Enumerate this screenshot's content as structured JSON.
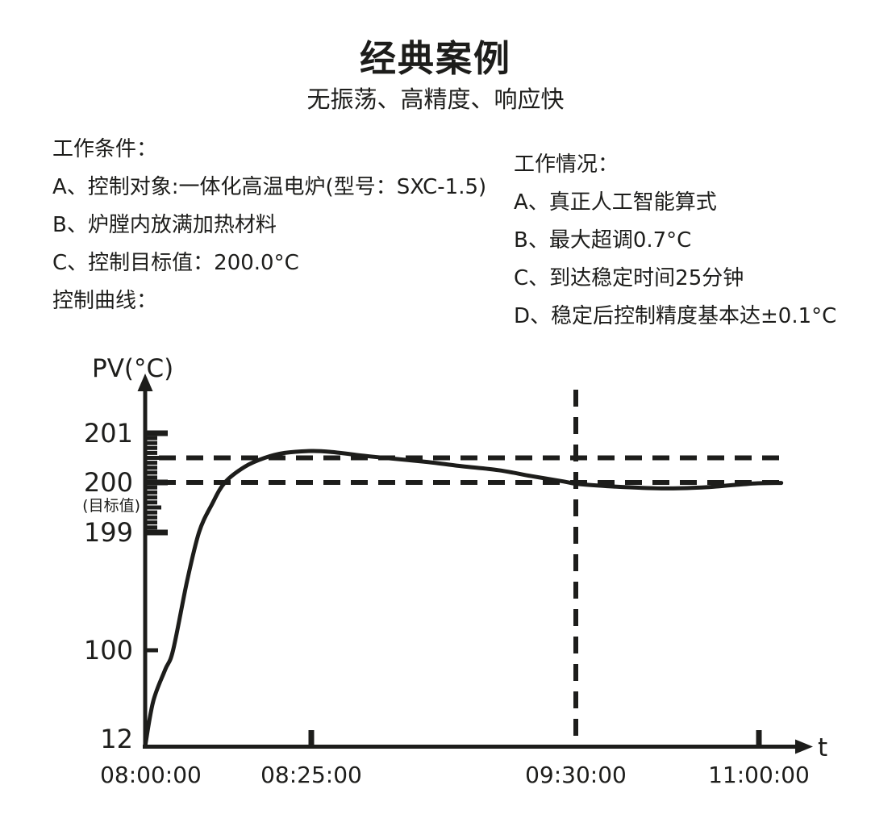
{
  "page": {
    "title": "经典案例",
    "subtitle": "无振荡、高精度、响应快"
  },
  "conditions": {
    "heading": "工作条件：",
    "items": [
      "A、控制对象:一体化高温电炉(型号：SXC-1.5)",
      "B、炉膛内放满加热材料",
      "C、控制目标值：200.0°C"
    ],
    "curve_label": "控制曲线："
  },
  "results": {
    "heading": "工作情况：",
    "items": [
      "A、真正人工智能算式",
      "B、最大超调0.7°C",
      "C、到达稳定时间25分钟",
      "D、稳定后控制精度基本达±0.1°C"
    ]
  },
  "chart_data": {
    "type": "line",
    "title": "控制曲线",
    "ylabel": "PV(°C)",
    "xlabel": "t",
    "x_axis": "time from 08:00:00, hh:mm:ss",
    "target_value": 200.0,
    "y_ticks": [
      {
        "value": 201,
        "label": "201"
      },
      {
        "value": 200,
        "label": "200",
        "sublabel": "(目标值)"
      },
      {
        "value": 199,
        "label": "199"
      },
      {
        "value": 100,
        "label": "100"
      },
      {
        "value": 12,
        "label": "12",
        "dy": -9
      }
    ],
    "y_ruler": {
      "from": 199,
      "to": 201,
      "minor_step": 0.1
    },
    "x_ticks": [
      {
        "label": "08:00:00",
        "minutes": 0,
        "tick": false,
        "dx": 7
      },
      {
        "label": "08:25:00",
        "minutes": 25,
        "tick": true
      },
      {
        "label": "09:30:00",
        "minutes": 90,
        "tick": false,
        "dashed_vertical": true
      },
      {
        "label": "11:00:00",
        "minutes": 180,
        "tick": true
      }
    ],
    "reference_lines_horizontal": [
      200.5,
      200.0
    ],
    "reference_line_vertical_minutes": 90,
    "series": [
      {
        "name": "PV",
        "points": [
          [
            0,
            12
          ],
          [
            1.2,
            53
          ],
          [
            3,
            82
          ],
          [
            4.2,
            100
          ],
          [
            6.3,
            158
          ],
          [
            8.1,
            199
          ],
          [
            10,
            199.55
          ],
          [
            12,
            200
          ],
          [
            15,
            200.32
          ],
          [
            18,
            200.5
          ],
          [
            21,
            200.6
          ],
          [
            25,
            200.64
          ],
          [
            30,
            200.62
          ],
          [
            36,
            200.56
          ],
          [
            43,
            200.5
          ],
          [
            53,
            200.42
          ],
          [
            62,
            200.33
          ],
          [
            71,
            200.25
          ],
          [
            79,
            200.13
          ],
          [
            87,
            200.02
          ],
          [
            91,
            199.97
          ],
          [
            108,
            199.92
          ],
          [
            132,
            199.88
          ],
          [
            152,
            199.9
          ],
          [
            168,
            199.95
          ],
          [
            178,
            199.98
          ],
          [
            191,
            199.99
          ]
        ]
      }
    ],
    "colors": {
      "line": "#1d1d1b",
      "axis": "#1d1d1b",
      "background": "#ffffff"
    }
  }
}
